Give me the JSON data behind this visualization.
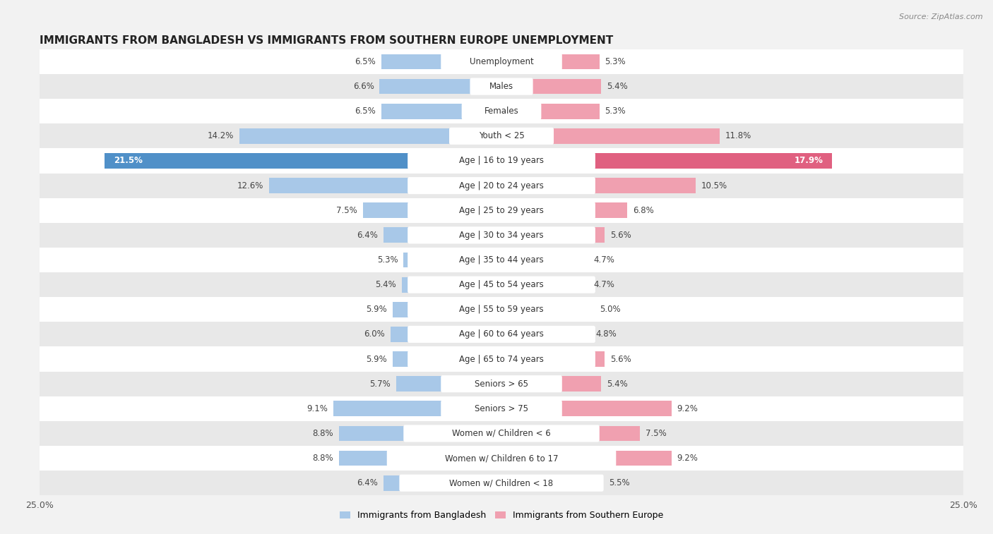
{
  "title": "IMMIGRANTS FROM BANGLADESH VS IMMIGRANTS FROM SOUTHERN EUROPE UNEMPLOYMENT",
  "source": "Source: ZipAtlas.com",
  "categories": [
    "Unemployment",
    "Males",
    "Females",
    "Youth < 25",
    "Age | 16 to 19 years",
    "Age | 20 to 24 years",
    "Age | 25 to 29 years",
    "Age | 30 to 34 years",
    "Age | 35 to 44 years",
    "Age | 45 to 54 years",
    "Age | 55 to 59 years",
    "Age | 60 to 64 years",
    "Age | 65 to 74 years",
    "Seniors > 65",
    "Seniors > 75",
    "Women w/ Children < 6",
    "Women w/ Children 6 to 17",
    "Women w/ Children < 18"
  ],
  "bangladesh_values": [
    6.5,
    6.6,
    6.5,
    14.2,
    21.5,
    12.6,
    7.5,
    6.4,
    5.3,
    5.4,
    5.9,
    6.0,
    5.9,
    5.7,
    9.1,
    8.8,
    8.8,
    6.4
  ],
  "southern_europe_values": [
    5.3,
    5.4,
    5.3,
    11.8,
    17.9,
    10.5,
    6.8,
    5.6,
    4.7,
    4.7,
    5.0,
    4.8,
    5.6,
    5.4,
    9.2,
    7.5,
    9.2,
    5.5
  ],
  "bangladesh_color": "#a8c8e8",
  "southern_europe_color": "#f0a0b0",
  "highlight_bangladesh_color": "#5090c8",
  "highlight_southern_europe_color": "#e06080",
  "background_color": "#f2f2f2",
  "row_color_odd": "#ffffff",
  "row_color_even": "#e8e8e8",
  "xlim": 25.0,
  "bar_height": 0.62,
  "legend_label_bangladesh": "Immigrants from Bangladesh",
  "legend_label_southern_europe": "Immigrants from Southern Europe",
  "title_fontsize": 11,
  "label_fontsize": 8.5,
  "value_fontsize": 8.5
}
